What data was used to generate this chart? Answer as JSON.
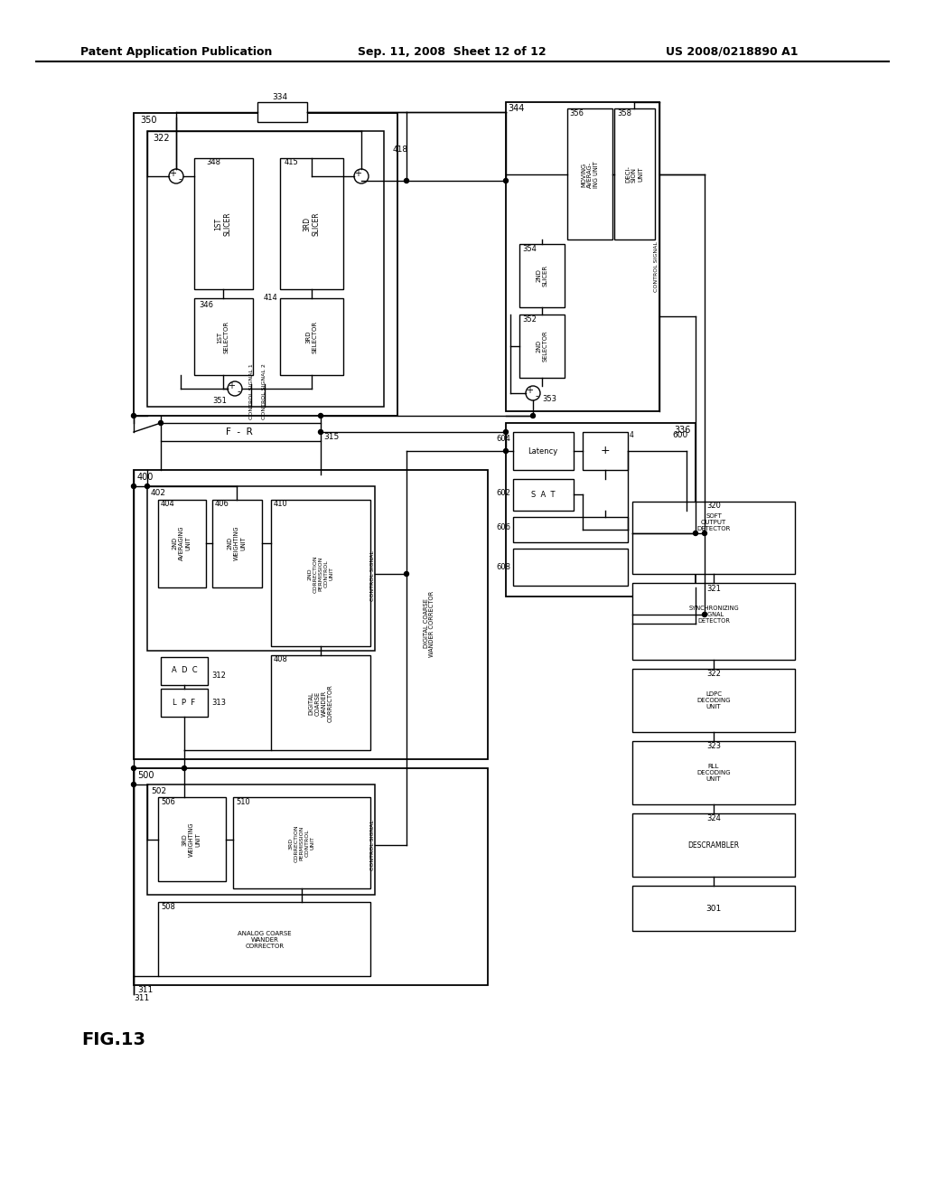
{
  "title_left": "Patent Application Publication",
  "title_mid": "Sep. 11, 2008  Sheet 12 of 12",
  "title_right": "US 2008/0218890 A1",
  "fig_label": "FIG.13",
  "bg_color": "#ffffff",
  "line_color": "#000000"
}
